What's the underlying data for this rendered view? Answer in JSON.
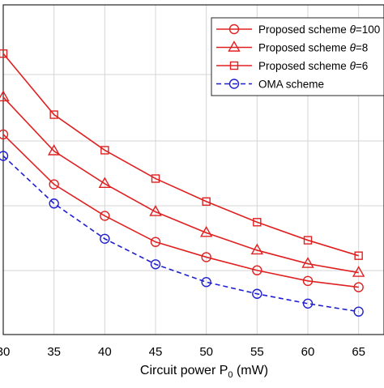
{
  "chart_data": {
    "type": "line",
    "title": "",
    "xlabel": "Circuit power P",
    "xlabel_subscript": "0",
    "xlabel_unit": " (mW)",
    "ylabel": "",
    "x": [
      30,
      35,
      40,
      45,
      50,
      55,
      60,
      65
    ],
    "x_tick_labels": [
      "30",
      "35",
      "40",
      "45",
      "50",
      "55",
      "60",
      "65"
    ],
    "xlim": [
      30,
      67.5
    ],
    "ylim": [
      0.88,
      2.03
    ],
    "grid": true,
    "legend_position": "top-right",
    "series": [
      {
        "name_prefix": "Proposed scheme  ",
        "theta_symbol": "θ",
        "name_suffix": "=100",
        "color": "#e02020",
        "dash": false,
        "marker": "circle",
        "values": [
          1.578,
          1.404,
          1.294,
          1.203,
          1.15,
          1.104,
          1.067,
          1.045
        ]
      },
      {
        "name_prefix": "Proposed scheme  ",
        "theta_symbol": "θ",
        "name_suffix": "=8",
        "color": "#e02020",
        "dash": false,
        "marker": "triangle",
        "values": [
          1.708,
          1.52,
          1.406,
          1.308,
          1.235,
          1.174,
          1.127,
          1.096
        ]
      },
      {
        "name_prefix": "Proposed scheme  ",
        "theta_symbol": "θ",
        "name_suffix": "=6",
        "color": "#e02020",
        "dash": false,
        "marker": "square",
        "values": [
          1.86,
          1.647,
          1.523,
          1.424,
          1.344,
          1.272,
          1.209,
          1.155
        ]
      },
      {
        "name_prefix": "OMA  scheme",
        "theta_symbol": "",
        "name_suffix": "",
        "color": "#1f1fd0",
        "dash": true,
        "marker": "circle",
        "values": [
          1.503,
          1.337,
          1.214,
          1.125,
          1.063,
          1.022,
          0.988,
          0.96
        ]
      }
    ]
  }
}
